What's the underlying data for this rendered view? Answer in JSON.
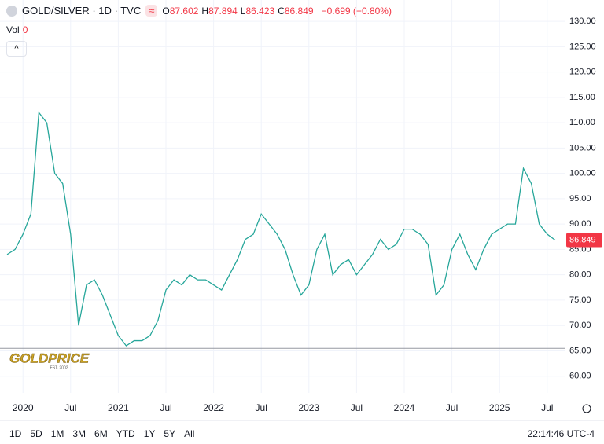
{
  "header": {
    "symbol": "GOLD/SILVER · 1D · TVC",
    "ohlc": [
      {
        "label": "O",
        "value": "87.602"
      },
      {
        "label": "H",
        "value": "87.894"
      },
      {
        "label": "L",
        "value": "86.423"
      },
      {
        "label": "C",
        "value": "86.849"
      }
    ],
    "change": "−0.699 (−0.80%)",
    "vol_label": "Vol",
    "vol_value": "0"
  },
  "chart_data": {
    "type": "line",
    "color": "#26a69a",
    "categories": [
      null,
      null,
      "2020",
      null,
      null,
      null,
      null,
      null,
      "Jul",
      null,
      null,
      null,
      null,
      null,
      "2021",
      null,
      null,
      null,
      null,
      null,
      "Jul",
      null,
      null,
      null,
      null,
      null,
      "2022",
      null,
      null,
      null,
      null,
      null,
      "Jul",
      null,
      null,
      null,
      null,
      null,
      "2023",
      null,
      null,
      null,
      null,
      null,
      "Jul",
      null,
      null,
      null,
      null,
      null,
      "2024",
      null,
      null,
      null,
      null,
      null,
      "Jul",
      null,
      null,
      null,
      null,
      null,
      "2025",
      null,
      null,
      null,
      null,
      null,
      "Jul",
      null
    ],
    "values": [
      84,
      85,
      88,
      92,
      112,
      110,
      100,
      98,
      88,
      70,
      78,
      79,
      76,
      72,
      68,
      66,
      67,
      67,
      68,
      71,
      77,
      79,
      78,
      80,
      79,
      79,
      78,
      77,
      80,
      83,
      87,
      88,
      92,
      90,
      88,
      85,
      80,
      76,
      78,
      85,
      88,
      80,
      82,
      83,
      80,
      82,
      84,
      87,
      85,
      86,
      89,
      89,
      88,
      86,
      76,
      78,
      85,
      88,
      84,
      81,
      85,
      88,
      89,
      90,
      90,
      101,
      98,
      90,
      88,
      86.849
    ],
    "ylim": [
      56.7,
      131.1
    ],
    "yticks": [
      {
        "value": 60,
        "label": "60.00"
      },
      {
        "value": 65,
        "label": "65.00"
      },
      {
        "value": 70,
        "label": "70.00"
      },
      {
        "value": 75,
        "label": "75.00"
      },
      {
        "value": 80,
        "label": "80.00"
      },
      {
        "value": 85,
        "label": "85.00"
      },
      {
        "value": 90,
        "label": "90.00"
      },
      {
        "value": 95,
        "label": "95.00"
      },
      {
        "value": 100,
        "label": "100.00"
      },
      {
        "value": 105,
        "label": "105.00"
      },
      {
        "value": 110,
        "label": "110.00"
      },
      {
        "value": 115,
        "label": "115.00"
      },
      {
        "value": 120,
        "label": "120.00"
      },
      {
        "value": 125,
        "label": "125.00"
      },
      {
        "value": 130,
        "label": "130.00"
      }
    ],
    "grid": true,
    "last_price": 86.849,
    "last_price_color": "#f23645",
    "hline": 65.5
  },
  "logo": {
    "name": "GOLDPRICE",
    "est": "EST. 2002"
  },
  "toolbar": {
    "ranges": [
      "1D",
      "5D",
      "1M",
      "3M",
      "6M",
      "YTD",
      "1Y",
      "5Y",
      "All"
    ],
    "time": "22:14:46 UTC-4"
  }
}
